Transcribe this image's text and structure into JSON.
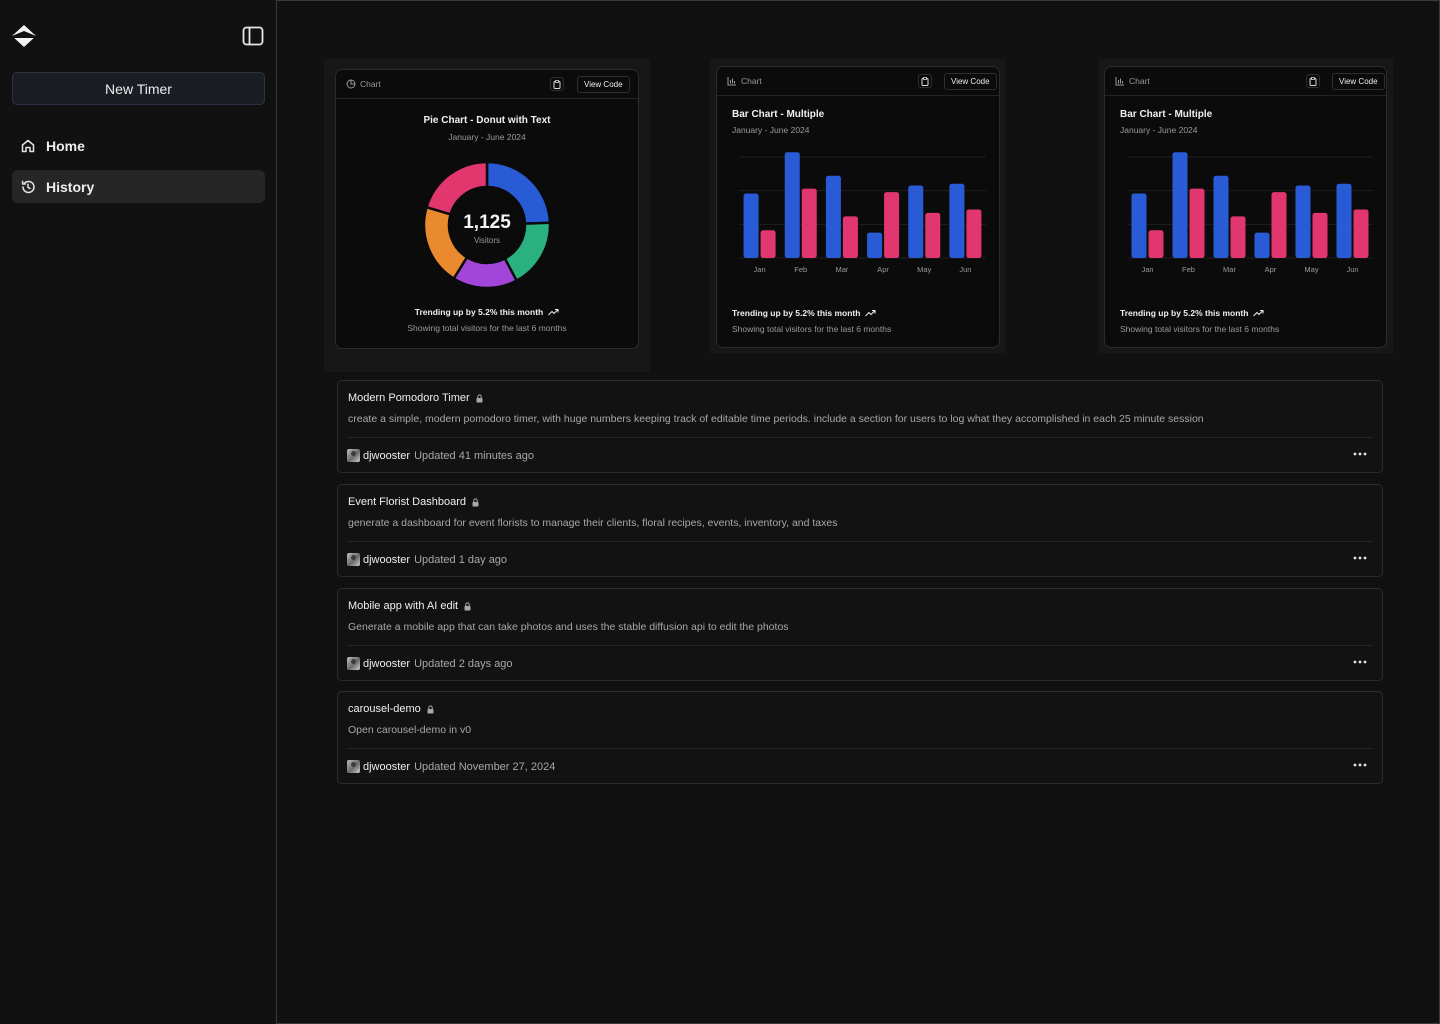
{
  "sidebar": {
    "new_button": "New Timer",
    "nav": [
      {
        "label": "Home",
        "icon": "home-icon",
        "active": false
      },
      {
        "label": "History",
        "icon": "history-icon",
        "active": true
      }
    ]
  },
  "cards": [
    {
      "header_label": "Chart",
      "view_code": "View Code",
      "title": "Pie Chart - Donut with Text",
      "subtitle": "January - June 2024",
      "center_value": "1,125",
      "center_label": "Visitors",
      "trend": "Trending up by 5.2% this month",
      "footer": "Showing total visitors for the last 6 months"
    },
    {
      "header_label": "Chart",
      "view_code": "View Code",
      "title": "Bar Chart - Multiple",
      "subtitle": "January - June 2024",
      "trend": "Trending up by 5.2% this month",
      "footer": "Showing total visitors for the last 6 months"
    },
    {
      "header_label": "Chart",
      "view_code": "View Code",
      "title": "Bar Chart - Multiple",
      "subtitle": "January - June 2024",
      "trend": "Trending up by 5.2% this month",
      "footer": "Showing total visitors for the last 6 months"
    }
  ],
  "chart_data": [
    {
      "type": "pie",
      "title": "Pie Chart - Donut with Text",
      "subtitle": "January - June 2024",
      "total": 1125,
      "slices": [
        {
          "value": 275,
          "color": "#2a5bd7"
        },
        {
          "value": 200,
          "color": "#2bb180"
        },
        {
          "value": 187,
          "color": "#a245da"
        },
        {
          "value": 233,
          "color": "#e88a2d"
        },
        {
          "value": 230,
          "color": "#e2366f"
        }
      ]
    },
    {
      "type": "bar",
      "title": "Bar Chart - Multiple",
      "subtitle": "January - June 2024",
      "categories": [
        "Jan",
        "Feb",
        "Mar",
        "Apr",
        "May",
        "Jun"
      ],
      "series": [
        {
          "values": [
            186,
            305,
            237,
            73,
            209,
            214
          ],
          "color": "#2a5bd7"
        },
        {
          "values": [
            80,
            200,
            120,
            190,
            130,
            140
          ],
          "color": "#e2366f"
        }
      ],
      "ylim": [
        0,
        320
      ],
      "grid": true
    },
    {
      "type": "bar",
      "title": "Bar Chart - Multiple",
      "subtitle": "January - June 2024",
      "categories": [
        "Jan",
        "Feb",
        "Mar",
        "Apr",
        "May",
        "Jun"
      ],
      "series": [
        {
          "values": [
            186,
            305,
            237,
            73,
            209,
            214
          ],
          "color": "#2a5bd7"
        },
        {
          "values": [
            80,
            200,
            120,
            190,
            130,
            140
          ],
          "color": "#e2366f"
        }
      ],
      "ylim": [
        0,
        320
      ],
      "grid": true
    }
  ],
  "projects": [
    {
      "title": "Modern Pomodoro Timer",
      "description": "create a simple, modern pomodoro timer, with huge numbers keeping track of editable time periods. include a section for users to log what they accomplished in each 25 minute session",
      "user": "djwooster",
      "updated": "Updated 41 minutes ago"
    },
    {
      "title": "Event Florist Dashboard",
      "description": "generate a dashboard for event florists to manage their clients, floral recipes, events, inventory, and taxes",
      "user": "djwooster",
      "updated": "Updated 1 day ago"
    },
    {
      "title": "Mobile app with AI edit",
      "description": "Generate a mobile app that can take photos and uses the stable diffusion api to edit the photos",
      "user": "djwooster",
      "updated": "Updated 2 days ago"
    },
    {
      "title": "carousel-demo",
      "description": "Open carousel-demo in v0",
      "user": "djwooster",
      "updated": "Updated November 27, 2024"
    }
  ]
}
